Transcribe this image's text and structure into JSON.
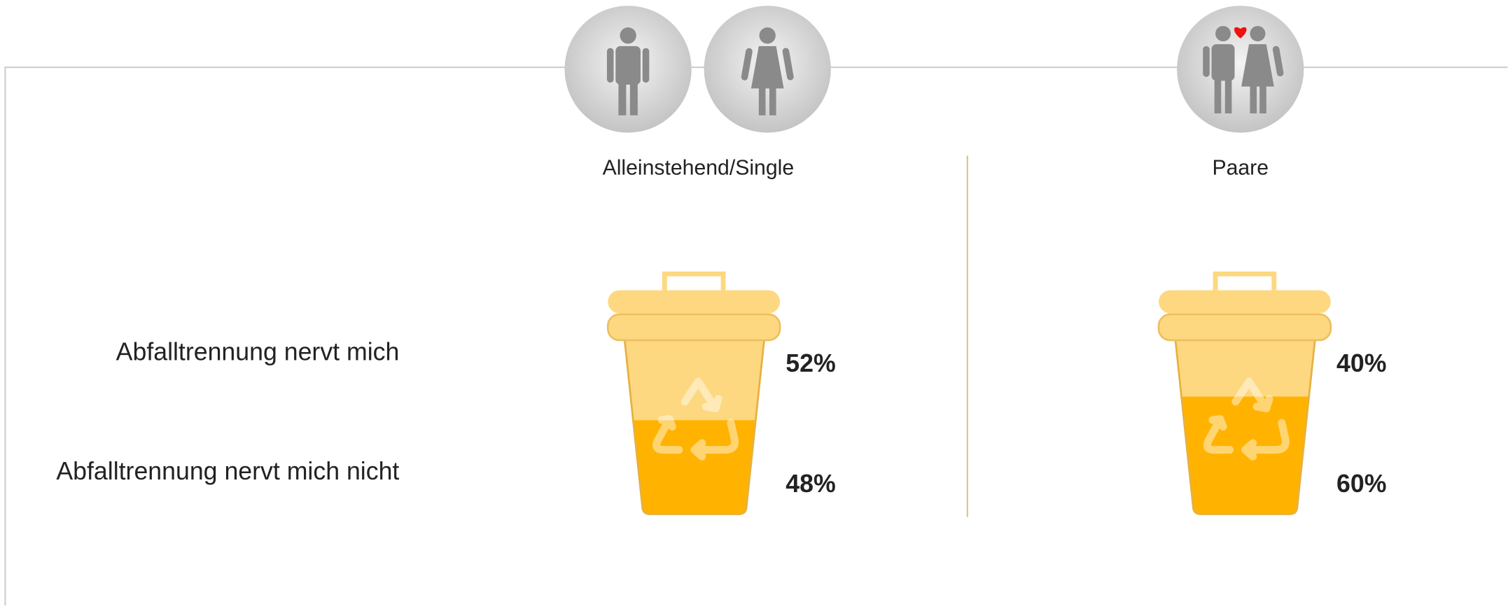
{
  "chart_data": {
    "type": "stacked-bin",
    "categories": [
      "Alleinstehend/Single",
      "Paare"
    ],
    "series": [
      {
        "name": "Abfalltrennung nervt mich",
        "color": "#fed880",
        "values": [
          52,
          40
        ],
        "value_labels": [
          "52%",
          "40%"
        ]
      },
      {
        "name": "Abfalltrennung nervt mich nicht",
        "color": "#ffb300",
        "values": [
          48,
          60
        ],
        "value_labels": [
          "48%",
          "60%"
        ]
      }
    ],
    "ylim": [
      0,
      100
    ]
  }
}
